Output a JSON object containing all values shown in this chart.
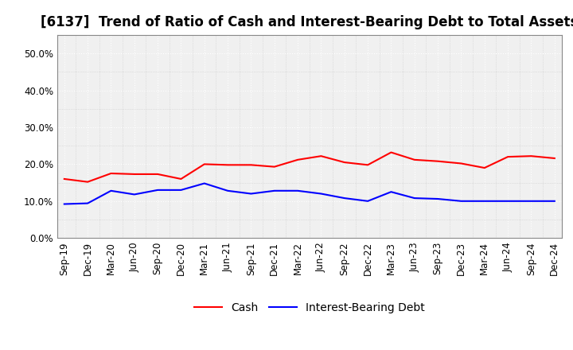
{
  "title": "[6137]  Trend of Ratio of Cash and Interest-Bearing Debt to Total Assets",
  "x_labels": [
    "Sep-19",
    "Dec-19",
    "Mar-20",
    "Jun-20",
    "Sep-20",
    "Dec-20",
    "Mar-21",
    "Jun-21",
    "Sep-21",
    "Dec-21",
    "Mar-22",
    "Jun-22",
    "Sep-22",
    "Dec-22",
    "Mar-23",
    "Jun-23",
    "Sep-23",
    "Dec-23",
    "Mar-24",
    "Jun-24",
    "Sep-24",
    "Dec-24"
  ],
  "cash": [
    0.16,
    0.152,
    0.175,
    0.173,
    0.173,
    0.16,
    0.2,
    0.198,
    0.198,
    0.193,
    0.212,
    0.222,
    0.205,
    0.198,
    0.232,
    0.212,
    0.208,
    0.202,
    0.19,
    0.22,
    0.222,
    0.216
  ],
  "debt": [
    0.092,
    0.094,
    0.128,
    0.118,
    0.13,
    0.13,
    0.148,
    0.128,
    0.12,
    0.128,
    0.128,
    0.12,
    0.108,
    0.1,
    0.125,
    0.108,
    0.106,
    0.1,
    0.1,
    0.1,
    0.1,
    0.1
  ],
  "cash_color": "#FF0000",
  "debt_color": "#0000FF",
  "ylim": [
    0.0,
    0.55
  ],
  "yticks": [
    0.0,
    0.1,
    0.2,
    0.3,
    0.4,
    0.5
  ],
  "background_color": "#FFFFFF",
  "plot_bg_color": "#F0F0F0",
  "grid_color": "#FFFFFF",
  "grid_minor_color": "#CCCCCC",
  "legend_cash": "Cash",
  "legend_debt": "Interest-Bearing Debt",
  "title_fontsize": 12,
  "tick_fontsize": 8.5,
  "legend_fontsize": 10
}
